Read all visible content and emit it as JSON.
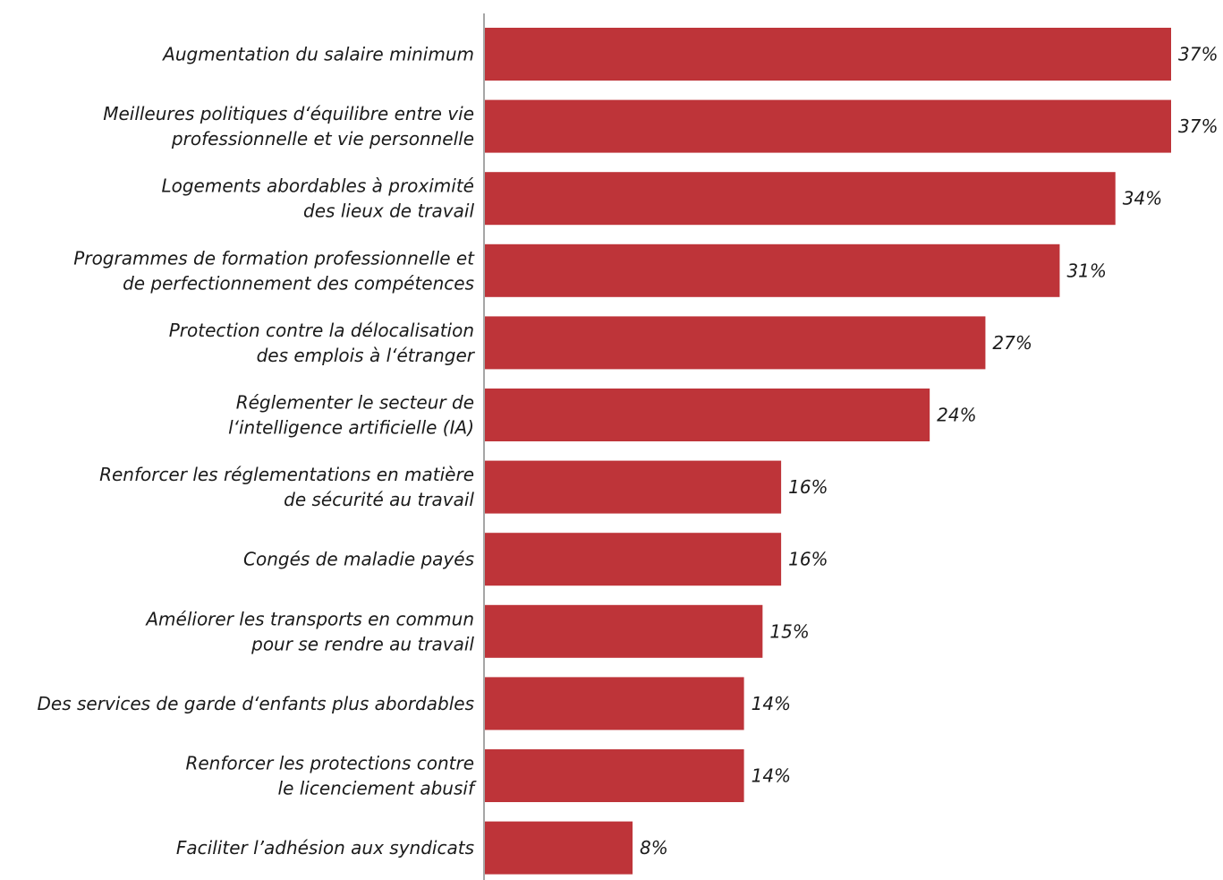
{
  "chart_data": {
    "type": "bar",
    "orientation": "horizontal",
    "categories": [
      [
        "Augmentation du salaire minimum"
      ],
      [
        "Meilleures politiques d‘équilibre entre vie",
        "professionnelle et vie personnelle"
      ],
      [
        "Logements abordables à proximité",
        "des lieux de travail"
      ],
      [
        "Programmes de formation professionnelle et",
        "de perfectionnement des compétences"
      ],
      [
        "Protection contre la délocalisation",
        "des emplois à l‘étranger"
      ],
      [
        "Réglementer le secteur de",
        "l‘intelligence artificielle (IA)"
      ],
      [
        "Renforcer les réglementations en matière",
        "de sécurité au travail"
      ],
      [
        "Congés de maladie payés"
      ],
      [
        "Améliorer les transports en commun",
        "pour se rendre au travail"
      ],
      [
        "Des services de garde d‘enfants plus abordables"
      ],
      [
        "Renforcer les protections contre",
        "le licenciement abusif"
      ],
      [
        "Faciliter l’adhésion aux syndicats"
      ]
    ],
    "values": [
      37,
      37,
      34,
      31,
      27,
      24,
      16,
      16,
      15,
      14,
      14,
      8
    ],
    "value_labels": [
      "37%",
      "37%",
      "34%",
      "31%",
      "27%",
      "24%",
      "16%",
      "16%",
      "15%",
      "14%",
      "14%",
      "8%"
    ],
    "xlim": [
      0,
      37
    ],
    "bar_color": "#BE3439",
    "axis_color": "#A6A6A6",
    "grid": false,
    "legend": "none",
    "title": "",
    "xlabel": "",
    "ylabel": ""
  }
}
